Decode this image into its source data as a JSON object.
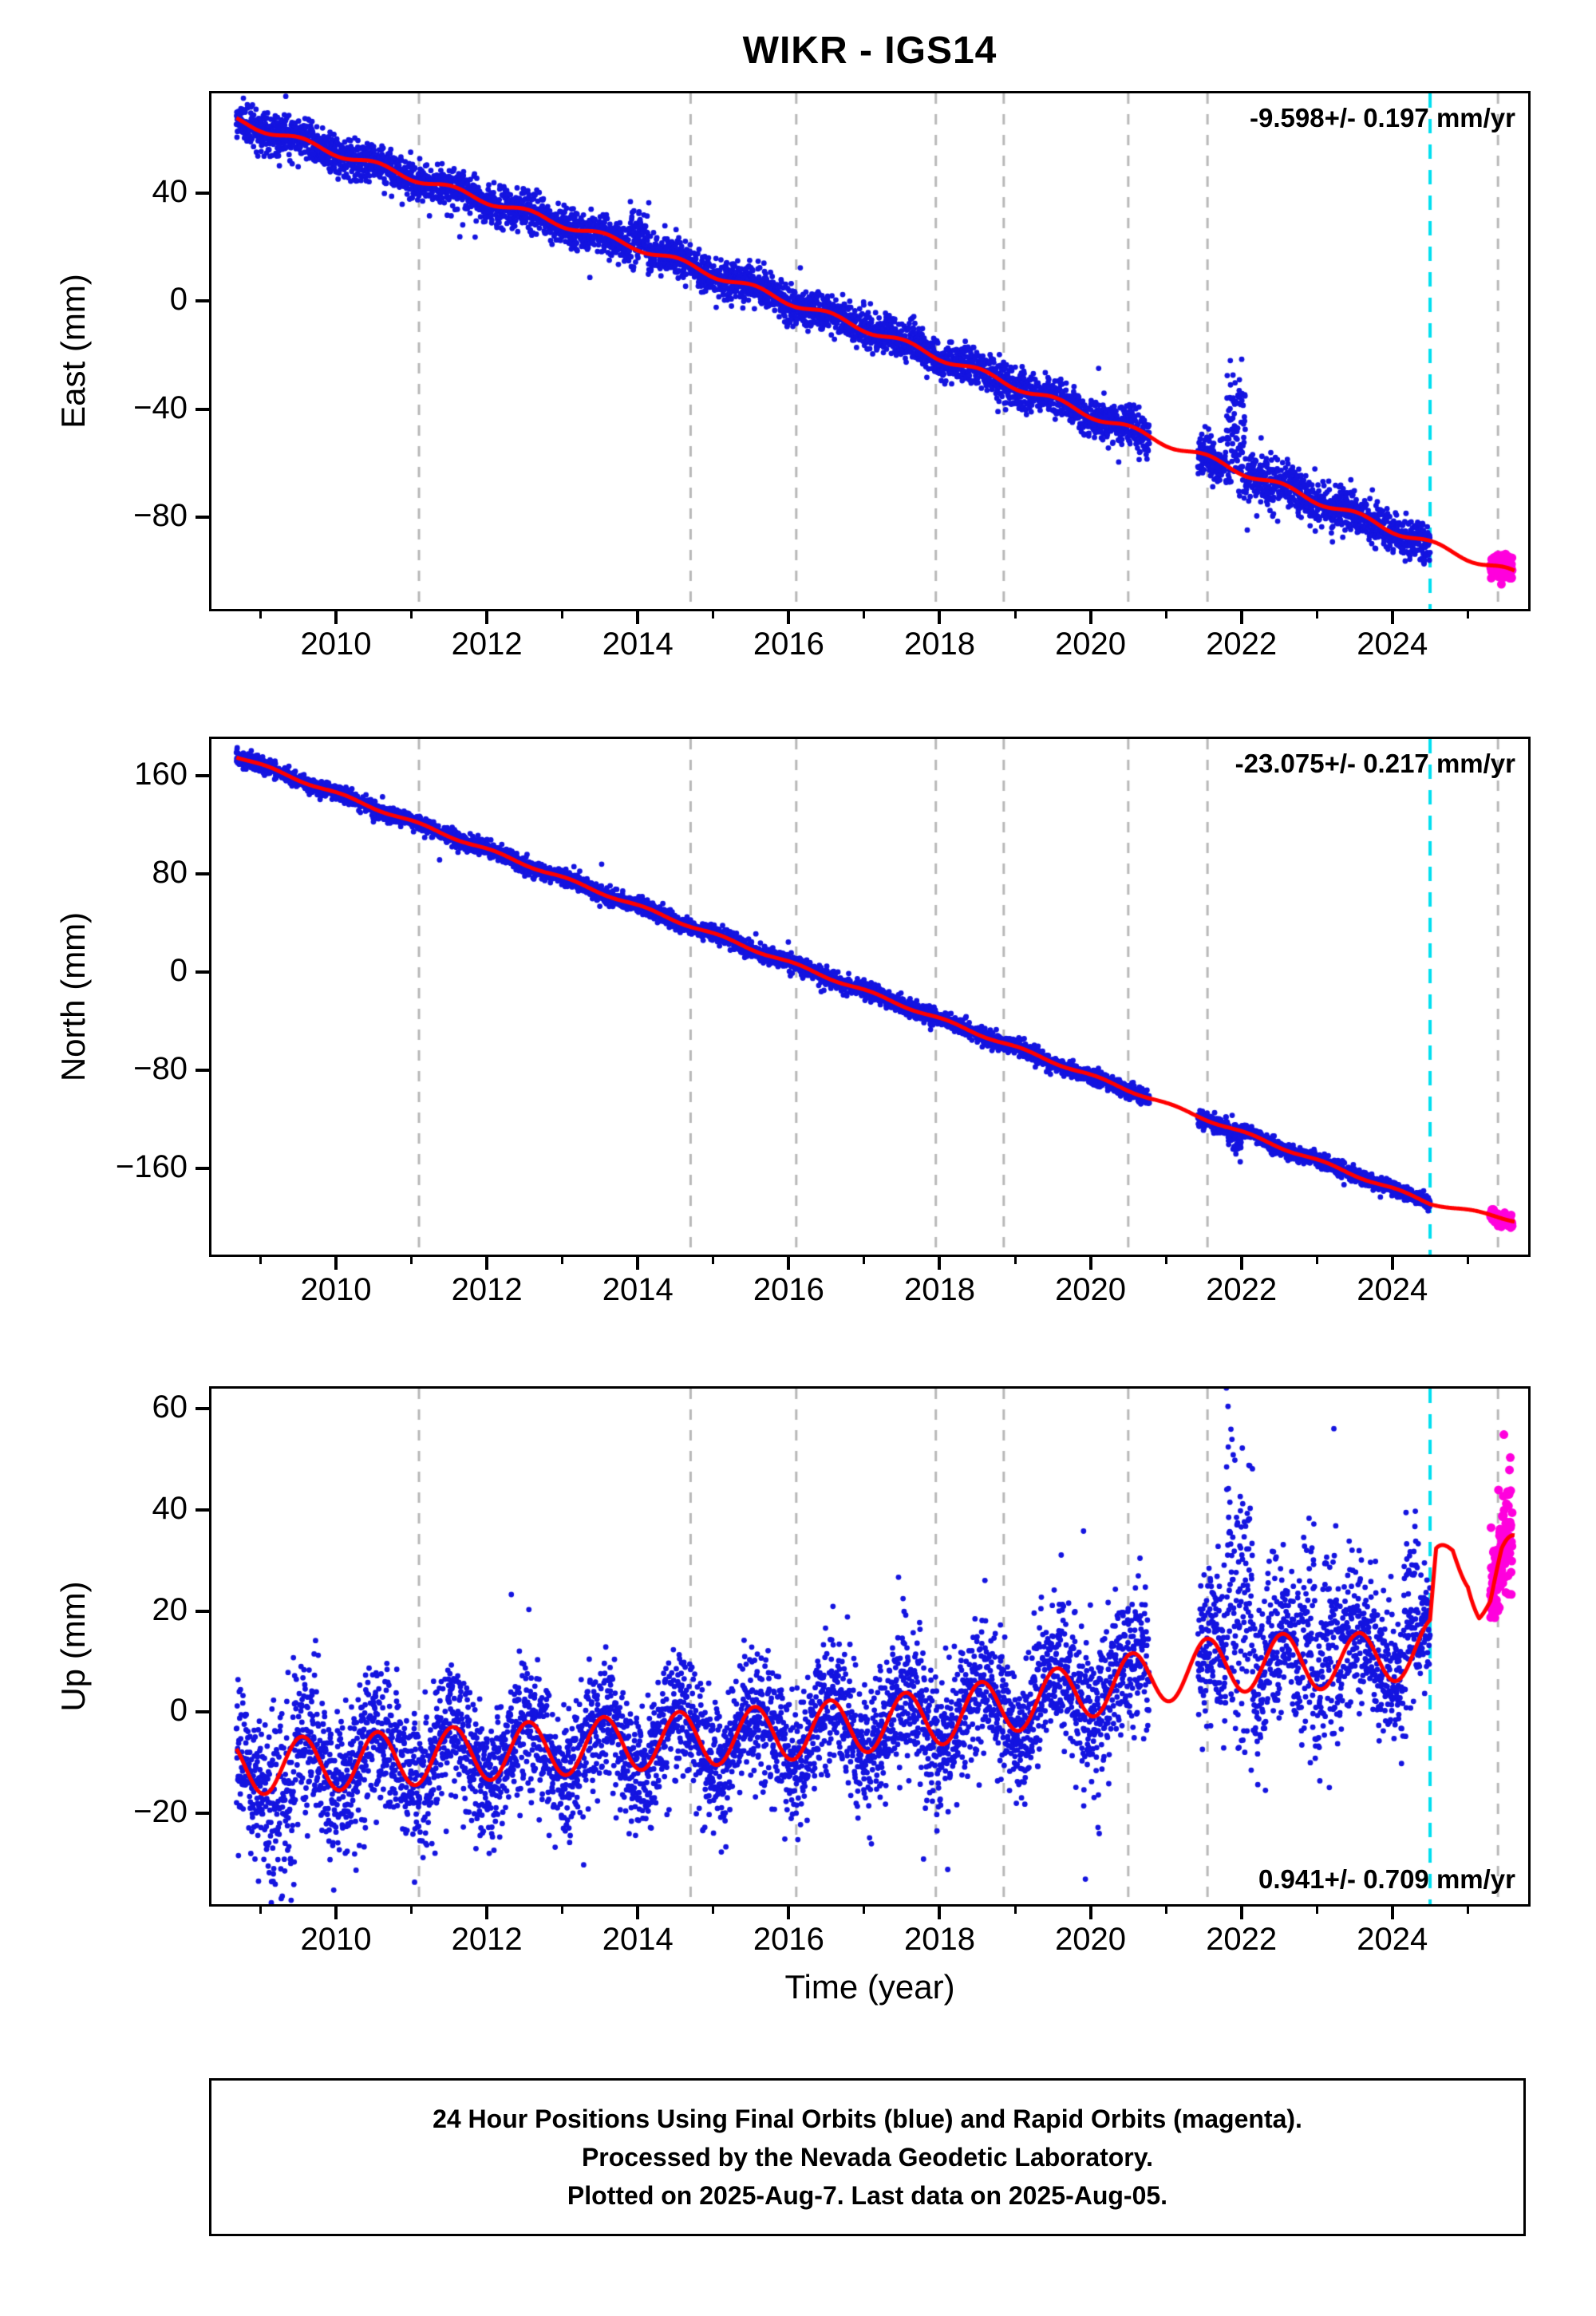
{
  "title": "WIKR - IGS14",
  "xlabel": "Time (year)",
  "footer": {
    "line1": "24 Hour Positions Using Final Orbits (blue) and Rapid Orbits (magenta).",
    "line2": "Processed by the Nevada Geodetic Laboratory.",
    "line3": "Plotted on 2025-Aug-7. Last data on 2025-Aug-05."
  },
  "colors": {
    "blue": "#1414e0",
    "magenta": "#ff00dd",
    "red": "#ff0000",
    "cyan": "#00dff0",
    "gray_dash": "#b8b8b8",
    "frame": "#000000"
  },
  "chart_data": {
    "type": "scatter",
    "description": "GPS daily position time series for station WIKR in IGS14 frame: East, North, Up components vs time",
    "x_axis": {
      "min": 2008.35,
      "max": 2025.8,
      "major_ticks": [
        2010,
        2012,
        2014,
        2016,
        2018,
        2020,
        2022,
        2024
      ],
      "minor_tick_interval": 1
    },
    "event_lines_gray": [
      2011.1,
      2014.7,
      2016.1,
      2017.95,
      2018.85,
      2020.5,
      2021.55,
      2025.4
    ],
    "event_line_cyan": 2024.5,
    "data_start": 2008.68,
    "blue_end": 2024.5,
    "red_end": 2025.62,
    "magenta_range": [
      2025.3,
      2025.59
    ],
    "gaps": [
      [
        2020.78,
        2021.42
      ]
    ],
    "panels": [
      {
        "name": "east",
        "ylabel": "East (mm)",
        "rate_label": "-9.598+/- 0.197 mm/yr",
        "rate_label_position": "top-right",
        "ylim": [
          -114,
          77
        ],
        "yticks": [
          40,
          0,
          -40,
          -80
        ],
        "trend": [
          [
            2008.68,
            67
          ],
          [
            2011,
            46
          ],
          [
            2014,
            20
          ],
          [
            2017,
            -10
          ],
          [
            2020,
            -42
          ],
          [
            2022,
            -63
          ],
          [
            2024.5,
            -90
          ],
          [
            2025.62,
            -101
          ]
        ],
        "seasonal_amplitude": 1.3,
        "seasonal_phase": 0.55,
        "noise_sigma": [
          [
            2008.68,
            3.6
          ],
          [
            2015,
            3.4
          ],
          [
            2020.4,
            3.6
          ],
          [
            2021.3,
            4.8
          ],
          [
            2022.4,
            4.2
          ],
          [
            2024.5,
            3.4
          ]
        ],
        "anomalies": [
          {
            "start": 2013.88,
            "end": 2014.15,
            "amp": 10
          },
          {
            "start": 2021.8,
            "end": 2022.05,
            "amp": 33
          }
        ],
        "magenta_sigma": 2.4
      },
      {
        "name": "north",
        "ylabel": "North (mm)",
        "rate_label": "-23.075+/- 0.217 mm/yr",
        "rate_label_position": "top-right",
        "ylim": [
          -230,
          190
        ],
        "yticks": [
          160,
          80,
          0,
          -80,
          -160
        ],
        "trend": [
          [
            2008.68,
            176
          ],
          [
            2016,
            8
          ],
          [
            2024.5,
            -188
          ],
          [
            2025.62,
            -202
          ]
        ],
        "seasonal_amplitude": 1.2,
        "seasonal_phase": 0.1,
        "noise_sigma": [
          [
            2008.68,
            3.2
          ],
          [
            2024.5,
            3.0
          ]
        ],
        "anomalies": [
          {
            "start": 2021.82,
            "end": 2022.0,
            "amp": -16
          }
        ],
        "magenta_sigma": 2.4
      },
      {
        "name": "up",
        "ylabel": "Up (mm)",
        "rate_label": "0.941+/- 0.709 mm/yr",
        "rate_label_position": "bottom-right",
        "ylim": [
          -38,
          64
        ],
        "yticks": [
          60,
          40,
          20,
          0,
          -20
        ],
        "trend": [
          [
            2008.68,
            -11
          ],
          [
            2010,
            -10
          ],
          [
            2012,
            -8
          ],
          [
            2014,
            -6
          ],
          [
            2016,
            -4
          ],
          [
            2018,
            -1
          ],
          [
            2019.5,
            3
          ],
          [
            2020.5,
            6
          ],
          [
            2021.5,
            9
          ],
          [
            2022.5,
            10
          ],
          [
            2023.5,
            10
          ],
          [
            2024.5,
            13
          ],
          [
            2024.58,
            27
          ],
          [
            2024.8,
            32
          ],
          [
            2025.0,
            30
          ],
          [
            2025.15,
            23
          ],
          [
            2025.3,
            22
          ],
          [
            2025.45,
            28
          ],
          [
            2025.62,
            30
          ]
        ],
        "seasonal_amplitude": 5.5,
        "seasonal_phase": 0.55,
        "noise_sigma": [
          [
            2008.68,
            7.5
          ],
          [
            2009.6,
            8
          ],
          [
            2011,
            6.5
          ],
          [
            2016,
            6
          ],
          [
            2019,
            6.5
          ],
          [
            2021.4,
            7
          ],
          [
            2022,
            8.5
          ],
          [
            2022.6,
            7.5
          ],
          [
            2024.5,
            6.5
          ]
        ],
        "anomalies": [
          {
            "start": 2009.05,
            "end": 2009.45,
            "amp": -14
          },
          {
            "start": 2021.8,
            "end": 2022.15,
            "amp": 37
          },
          {
            "start": 2022.82,
            "end": 2022.98,
            "amp": 17
          },
          {
            "start": 2023.05,
            "end": 2023.25,
            "amp": 13
          },
          {
            "start": 2024.15,
            "end": 2024.35,
            "amp": 14
          }
        ],
        "magenta_sigma": 6
      }
    ]
  }
}
